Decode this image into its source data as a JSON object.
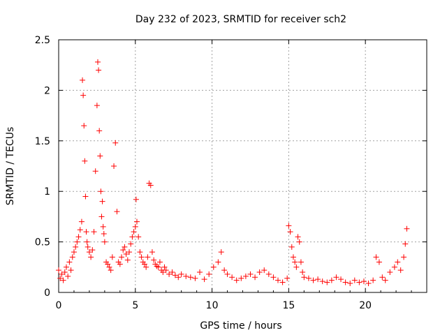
{
  "chart_data": {
    "type": "scatter",
    "title": "Day 232 of 2023, SRMTID for receiver sch2",
    "xlabel": "GPS time / hours",
    "ylabel": "SRMTID / TECUs",
    "xlim": [
      0,
      24
    ],
    "ylim": [
      0,
      2.5
    ],
    "x_ticks": [
      0,
      5,
      10,
      15,
      20
    ],
    "x_tick_labels": [
      "0",
      "5",
      "10",
      "15",
      "20"
    ],
    "y_ticks": [
      0,
      0.5,
      1,
      1.5,
      2,
      2.5
    ],
    "y_tick_labels": [
      "0",
      "0.5",
      "1",
      "1.5",
      "2",
      "2.5"
    ],
    "grid": true,
    "marker": "+",
    "colors": {
      "series": "#ff0000",
      "grid": "#a0a0a0",
      "axes": "#000000"
    },
    "series": [
      {
        "name": "sch2",
        "x": [
          0.0,
          0.1,
          0.2,
          0.3,
          0.4,
          0.5,
          0.6,
          0.7,
          0.8,
          0.9,
          1.0,
          1.1,
          1.2,
          1.3,
          1.4,
          1.5,
          1.55,
          1.6,
          1.65,
          1.7,
          1.75,
          1.8,
          1.85,
          1.9,
          2.0,
          2.1,
          2.2,
          2.3,
          2.4,
          2.5,
          2.55,
          2.6,
          2.65,
          2.7,
          2.75,
          2.8,
          2.85,
          2.9,
          2.95,
          3.0,
          3.1,
          3.2,
          3.3,
          3.4,
          3.5,
          3.6,
          3.7,
          3.8,
          3.9,
          4.0,
          4.1,
          4.2,
          4.3,
          4.4,
          4.5,
          4.6,
          4.7,
          4.8,
          4.9,
          5.0,
          5.05,
          5.1,
          5.2,
          5.3,
          5.4,
          5.5,
          5.6,
          5.7,
          5.8,
          5.9,
          6.0,
          6.1,
          6.2,
          6.3,
          6.4,
          6.5,
          6.6,
          6.7,
          6.8,
          6.9,
          7.0,
          7.2,
          7.4,
          7.6,
          7.8,
          8.0,
          8.3,
          8.6,
          8.9,
          9.2,
          9.5,
          9.8,
          10.1,
          10.4,
          10.6,
          10.8,
          11.0,
          11.3,
          11.6,
          11.9,
          12.2,
          12.5,
          12.8,
          13.1,
          13.4,
          13.7,
          14.0,
          14.3,
          14.6,
          14.9,
          15.0,
          15.1,
          15.2,
          15.3,
          15.4,
          15.5,
          15.6,
          15.7,
          15.8,
          15.9,
          16.0,
          16.3,
          16.6,
          16.9,
          17.2,
          17.5,
          17.8,
          18.1,
          18.4,
          18.7,
          19.0,
          19.3,
          19.6,
          19.9,
          20.2,
          20.5,
          20.7,
          20.9,
          21.1,
          21.3,
          21.6,
          21.9,
          22.1,
          22.3,
          22.5,
          22.6,
          22.7
        ],
        "y": [
          0.22,
          0.14,
          0.18,
          0.12,
          0.2,
          0.25,
          0.16,
          0.3,
          0.22,
          0.35,
          0.4,
          0.45,
          0.5,
          0.55,
          0.62,
          0.7,
          2.1,
          1.95,
          1.65,
          1.3,
          0.95,
          0.6,
          0.5,
          0.45,
          0.4,
          0.35,
          0.42,
          0.6,
          1.2,
          1.85,
          2.28,
          2.2,
          1.6,
          1.35,
          1.0,
          0.75,
          0.9,
          0.65,
          0.58,
          0.5,
          0.3,
          0.28,
          0.25,
          0.22,
          0.35,
          1.25,
          1.48,
          0.8,
          0.3,
          0.28,
          0.35,
          0.42,
          0.45,
          0.38,
          0.32,
          0.4,
          0.48,
          0.55,
          0.6,
          0.65,
          0.92,
          0.7,
          0.55,
          0.4,
          0.35,
          0.3,
          0.28,
          0.25,
          0.35,
          1.08,
          1.06,
          0.4,
          0.32,
          0.28,
          0.26,
          0.25,
          0.3,
          0.22,
          0.2,
          0.25,
          0.22,
          0.18,
          0.2,
          0.17,
          0.15,
          0.18,
          0.16,
          0.15,
          0.14,
          0.2,
          0.13,
          0.18,
          0.25,
          0.3,
          0.4,
          0.22,
          0.18,
          0.15,
          0.12,
          0.14,
          0.16,
          0.18,
          0.15,
          0.2,
          0.22,
          0.18,
          0.15,
          0.12,
          0.1,
          0.14,
          0.66,
          0.6,
          0.45,
          0.35,
          0.3,
          0.25,
          0.55,
          0.5,
          0.3,
          0.2,
          0.15,
          0.14,
          0.12,
          0.13,
          0.11,
          0.1,
          0.12,
          0.15,
          0.13,
          0.1,
          0.09,
          0.12,
          0.1,
          0.11,
          0.09,
          0.12,
          0.35,
          0.3,
          0.15,
          0.12,
          0.2,
          0.25,
          0.3,
          0.22,
          0.35,
          0.48,
          0.63
        ]
      }
    ]
  }
}
